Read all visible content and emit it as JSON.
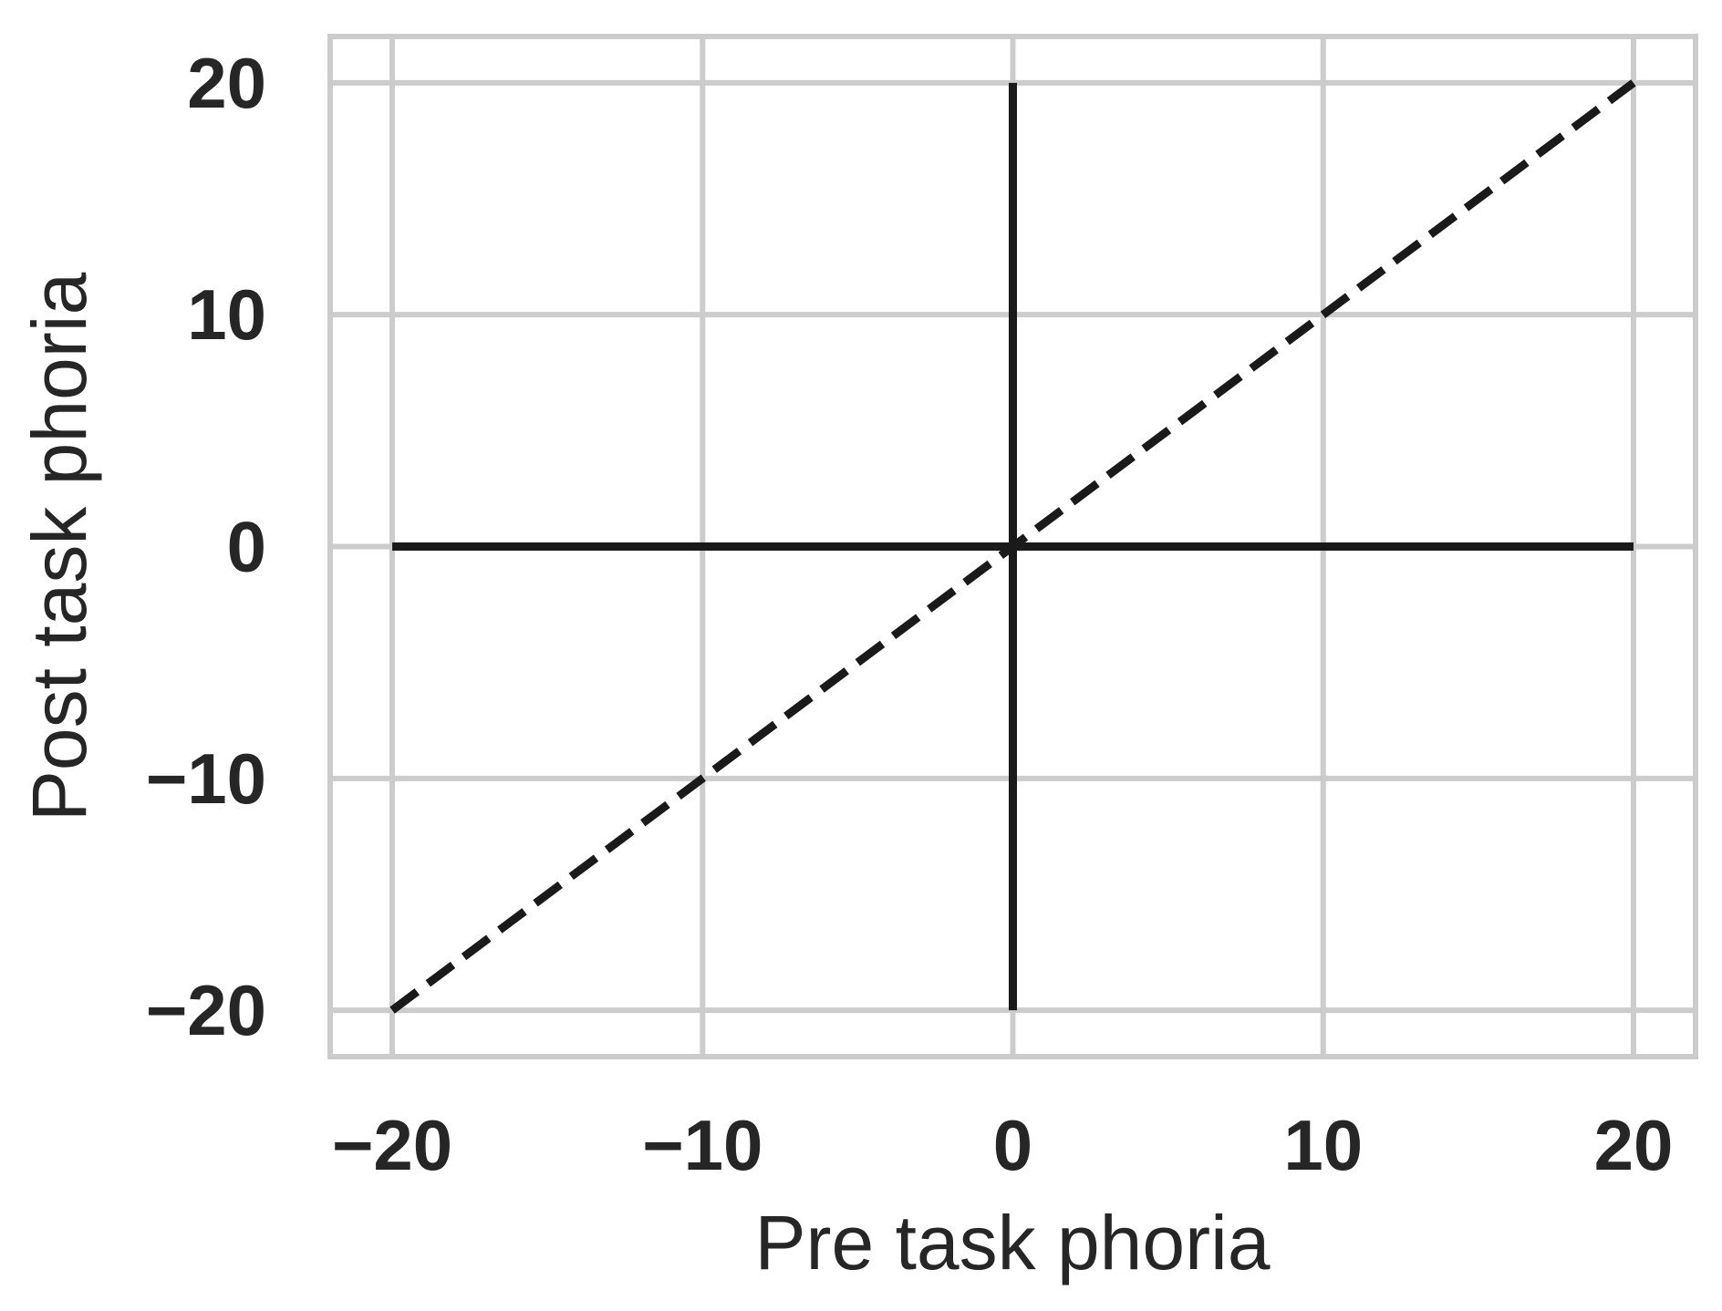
{
  "chart_data": {
    "type": "line",
    "title": "",
    "xlabel": "Pre task phoria",
    "ylabel": "Post task phoria",
    "xlim": [
      -22,
      22
    ],
    "ylim": [
      -22,
      22
    ],
    "xticks": [
      -20,
      -10,
      0,
      10,
      20
    ],
    "yticks": [
      -20,
      -10,
      0,
      10,
      20
    ],
    "xtick_labels": [
      "−20",
      "−10",
      "0",
      "10",
      "20"
    ],
    "ytick_labels": [
      "−20",
      "−10",
      "0",
      "10",
      "20"
    ],
    "grid": true,
    "legend": "none",
    "series": [
      {
        "style": "solid",
        "color": "#1a1a1a",
        "x": [
          -20,
          20
        ],
        "y": [
          0,
          0
        ]
      },
      {
        "style": "solid",
        "color": "#1a1a1a",
        "x": [
          0,
          0
        ],
        "y": [
          -20,
          20
        ]
      },
      {
        "style": "dashed",
        "color": "#1a1a1a",
        "x": [
          -20,
          20
        ],
        "y": [
          -20,
          20
        ]
      }
    ],
    "colors": {
      "grid": "#cccccc",
      "frame": "#cccccc",
      "text": "#262626",
      "line": "#1a1a1a",
      "background": "#ffffff"
    }
  }
}
